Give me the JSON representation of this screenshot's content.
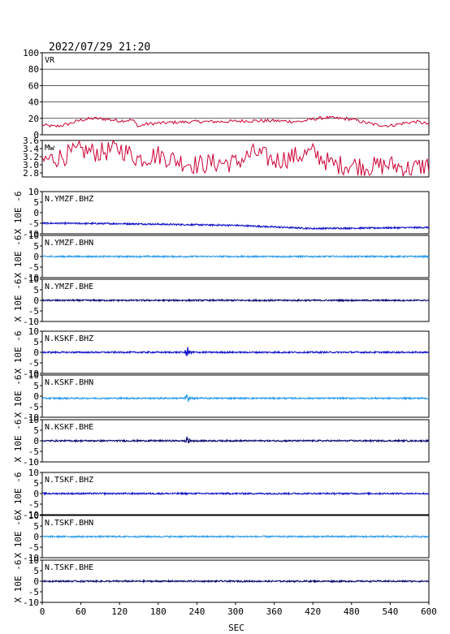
{
  "header": {
    "timestamp": "2022/07/29 21:20"
  },
  "xaxis": {
    "label": "SEC",
    "range": [
      0,
      600
    ],
    "ticks": [
      0,
      60,
      120,
      180,
      240,
      300,
      360,
      420,
      480,
      540,
      600
    ]
  },
  "colors": {
    "vr": "#cc0033",
    "mw": "#cc0033",
    "bhz": "#1515c8",
    "bhn": "#2a9aea",
    "bhe": "#0b0b70",
    "frame": "#000000",
    "grid": "#000000"
  },
  "chart_data": [
    {
      "type": "line",
      "panel_label": "VR",
      "ylim": [
        0,
        100
      ],
      "yticks": [
        0,
        20,
        40,
        60,
        80,
        100
      ],
      "grid": true,
      "series": [
        {
          "x": [
            0,
            20,
            40,
            60,
            80,
            100,
            120,
            140,
            150,
            160,
            180,
            200,
            240,
            280,
            320,
            360,
            400,
            420,
            440,
            460,
            480,
            500,
            520,
            540,
            560,
            580,
            600
          ],
          "values": [
            12,
            10,
            13,
            18,
            20,
            19,
            17,
            18,
            10,
            13,
            14,
            15,
            16,
            16,
            17,
            17,
            16,
            19,
            21,
            20,
            19,
            15,
            12,
            11,
            14,
            16,
            13
          ]
        }
      ]
    },
    {
      "type": "line",
      "panel_label": "Mw",
      "ylim": [
        2.7,
        3.6
      ],
      "yticks": [
        2.8,
        3.0,
        3.2,
        3.4,
        3.6
      ],
      "grid": false,
      "series": [
        {
          "x": [
            0,
            30,
            60,
            90,
            120,
            150,
            180,
            210,
            240,
            270,
            300,
            330,
            360,
            390,
            420,
            450,
            480,
            510,
            540,
            570,
            600
          ],
          "values": [
            3.1,
            3.2,
            3.35,
            3.3,
            3.4,
            3.15,
            3.25,
            3.1,
            3.0,
            3.05,
            3.05,
            3.3,
            3.1,
            3.2,
            3.3,
            3.0,
            3.0,
            2.95,
            3.0,
            2.9,
            3.0
          ]
        }
      ]
    },
    {
      "type": "line",
      "panel_label": "N.YMZF.BHZ",
      "channel": "bhz",
      "ylabel": "X 10E -6",
      "ylim": [
        -10,
        10
      ],
      "yticks": [
        -10,
        -5,
        0,
        5,
        10
      ],
      "baseline": [
        [
          0,
          -5
        ],
        [
          120,
          -5.2
        ],
        [
          300,
          -6
        ],
        [
          420,
          -7.5
        ],
        [
          600,
          -7
        ]
      ],
      "events": []
    },
    {
      "type": "line",
      "panel_label": "N.YMZF.BHN",
      "channel": "bhn",
      "ylabel": "X 10E -6",
      "ylim": [
        -10,
        10
      ],
      "yticks": [
        -10,
        -5,
        0,
        5,
        10
      ],
      "baseline": [
        [
          0,
          0
        ],
        [
          600,
          0
        ]
      ],
      "events": []
    },
    {
      "type": "line",
      "panel_label": "N.YMZF.BHE",
      "channel": "bhe",
      "ylabel": "X 10E -6",
      "ylim": [
        -10,
        10
      ],
      "yticks": [
        -10,
        -5,
        0,
        5,
        10
      ],
      "baseline": [
        [
          0,
          0
        ],
        [
          600,
          0
        ]
      ],
      "events": []
    },
    {
      "type": "line",
      "panel_label": "N.KSKF.BHZ",
      "channel": "bhz",
      "ylabel": "X 10E -6",
      "ylim": [
        -10,
        10
      ],
      "yticks": [
        -10,
        -5,
        0,
        5,
        10
      ],
      "baseline": [
        [
          0,
          0
        ],
        [
          600,
          0
        ]
      ],
      "events": [
        {
          "t": 225,
          "amp": 2.5
        }
      ]
    },
    {
      "type": "line",
      "panel_label": "N.KSKF.BHN",
      "channel": "bhn",
      "ylabel": "X 10E -6",
      "ylim": [
        -10,
        10
      ],
      "yticks": [
        -10,
        -5,
        0,
        5,
        10
      ],
      "baseline": [
        [
          0,
          -1
        ],
        [
          600,
          -1
        ]
      ],
      "events": [
        {
          "t": 225,
          "amp": 2.5
        }
      ]
    },
    {
      "type": "line",
      "panel_label": "N.KSKF.BHE",
      "channel": "bhe",
      "ylabel": "X 10E -6",
      "ylim": [
        -10,
        10
      ],
      "yticks": [
        -10,
        -5,
        0,
        5,
        10
      ],
      "baseline": [
        [
          0,
          0
        ],
        [
          600,
          0
        ]
      ],
      "events": [
        {
          "t": 225,
          "amp": 2.0
        }
      ]
    },
    {
      "type": "line",
      "panel_label": "N.TSKF.BHZ",
      "channel": "bhz",
      "ylabel": "X 10E -6",
      "ylim": [
        -10,
        10
      ],
      "yticks": [
        -10,
        -5,
        0,
        5,
        10
      ],
      "baseline": [
        [
          0,
          0
        ],
        [
          600,
          0
        ]
      ],
      "events": []
    },
    {
      "type": "line",
      "panel_label": "N.TSKF.BHN",
      "channel": "bhn",
      "ylabel": "X 10E -6",
      "ylim": [
        -10,
        10
      ],
      "yticks": [
        -10,
        -5,
        0,
        5,
        10
      ],
      "baseline": [
        [
          0,
          0
        ],
        [
          600,
          0
        ]
      ],
      "events": []
    },
    {
      "type": "line",
      "panel_label": "N.TSKF.BHE",
      "channel": "bhe",
      "ylabel": "X 10E -6",
      "ylim": [
        -10,
        10
      ],
      "yticks": [
        -10,
        -5,
        0,
        5,
        10
      ],
      "baseline": [
        [
          0,
          0
        ],
        [
          600,
          0
        ]
      ],
      "events": []
    }
  ]
}
